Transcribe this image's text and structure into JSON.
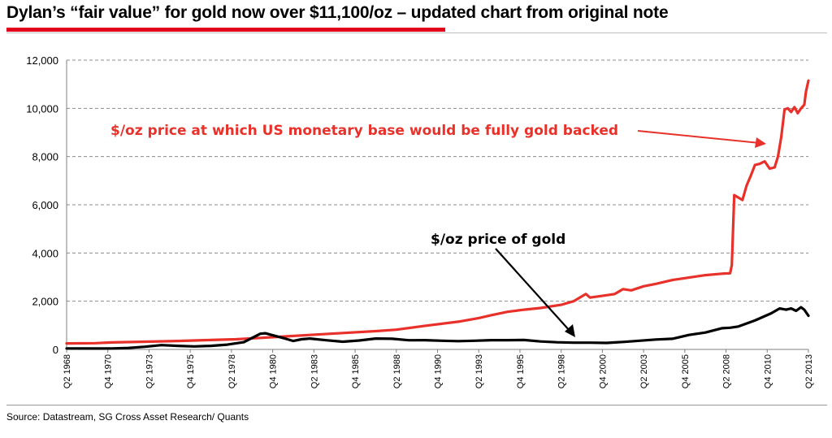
{
  "header": {
    "title": "Dylan’s “fair value” for gold now over $11,100/oz – updated chart from original note"
  },
  "footer": {
    "source": "Source: Datastream, SG Cross Asset Research/ Quants"
  },
  "colors": {
    "accent_red": "#e3001b",
    "fair_value_line": "#e8312a",
    "gold_line": "#000000",
    "grid": "#8c8c8c"
  },
  "chart_data": {
    "type": "line",
    "xlabel": "",
    "ylabel": "",
    "ylim": [
      0,
      12000
    ],
    "y_ticks": [
      "0",
      "2,000",
      "4,000",
      "6,000",
      "8,000",
      "10,000",
      "12,000"
    ],
    "grid": true,
    "x_ticks": [
      "Q2 1968",
      "Q4 1970",
      "Q2 1973",
      "Q4 1975",
      "Q2 1978",
      "Q4 1980",
      "Q2 1983",
      "Q4 1985",
      "Q2 1988",
      "Q4 1990",
      "Q2 1993",
      "Q4 1995",
      "Q2 1998",
      "Q4 2000",
      "Q2 2003",
      "Q4 2005",
      "Q2 2008",
      "Q4 2010",
      "Q2 2013"
    ],
    "annotations": [
      {
        "text": "$/oz price at which US monetary base would be fully gold backed",
        "color": "#e8312a"
      },
      {
        "text": "$/oz price of gold",
        "color": "#000000"
      }
    ],
    "series": [
      {
        "key": "fair_value",
        "color": "#e8312a",
        "points": [
          [
            1968.25,
            250
          ],
          [
            1970,
            260
          ],
          [
            1971,
            290
          ],
          [
            1973,
            320
          ],
          [
            1975,
            350
          ],
          [
            1977,
            390
          ],
          [
            1978.5,
            420
          ],
          [
            1980,
            480
          ],
          [
            1981,
            520
          ],
          [
            1983,
            600
          ],
          [
            1985,
            680
          ],
          [
            1987,
            760
          ],
          [
            1988.25,
            820
          ],
          [
            1990,
            980
          ],
          [
            1992,
            1150
          ],
          [
            1993.25,
            1300
          ],
          [
            1994,
            1420
          ],
          [
            1995,
            1560
          ],
          [
            1996,
            1650
          ],
          [
            1997,
            1720
          ],
          [
            1998.25,
            1850
          ],
          [
            1999,
            2000
          ],
          [
            1999.75,
            2300
          ],
          [
            2000,
            2150
          ],
          [
            2001,
            2250
          ],
          [
            2001.5,
            2300
          ],
          [
            2002,
            2500
          ],
          [
            2002.5,
            2450
          ],
          [
            2003.25,
            2620
          ],
          [
            2004,
            2720
          ],
          [
            2005,
            2880
          ],
          [
            2006,
            2980
          ],
          [
            2007,
            3080
          ],
          [
            2008,
            3140
          ],
          [
            2008.5,
            3160
          ],
          [
            2008.6,
            3500
          ],
          [
            2008.75,
            6400
          ],
          [
            2009,
            6300
          ],
          [
            2009.25,
            6200
          ],
          [
            2009.5,
            6800
          ],
          [
            2009.75,
            7200
          ],
          [
            2010,
            7650
          ],
          [
            2010.3,
            7700
          ],
          [
            2010.6,
            7800
          ],
          [
            2010.9,
            7500
          ],
          [
            2011.2,
            7550
          ],
          [
            2011.4,
            8000
          ],
          [
            2011.6,
            8800
          ],
          [
            2011.8,
            9950
          ],
          [
            2012,
            10000
          ],
          [
            2012.2,
            9850
          ],
          [
            2012.4,
            10050
          ],
          [
            2012.6,
            9800
          ],
          [
            2012.8,
            10000
          ],
          [
            2013,
            10150
          ],
          [
            2013.1,
            10700
          ],
          [
            2013.25,
            11150
          ]
        ]
      },
      {
        "key": "gold",
        "color": "#000000",
        "points": [
          [
            1968.25,
            40
          ],
          [
            1970,
            36
          ],
          [
            1971,
            40
          ],
          [
            1972,
            60
          ],
          [
            1973,
            110
          ],
          [
            1974,
            180
          ],
          [
            1975,
            150
          ],
          [
            1976,
            125
          ],
          [
            1977,
            150
          ],
          [
            1978,
            200
          ],
          [
            1979,
            300
          ],
          [
            1980,
            650
          ],
          [
            1980.3,
            670
          ],
          [
            1980.8,
            580
          ],
          [
            1981.5,
            450
          ],
          [
            1982,
            350
          ],
          [
            1982.5,
            420
          ],
          [
            1983,
            450
          ],
          [
            1984,
            380
          ],
          [
            1985,
            320
          ],
          [
            1986,
            370
          ],
          [
            1987,
            450
          ],
          [
            1988,
            440
          ],
          [
            1989,
            380
          ],
          [
            1990,
            385
          ],
          [
            1991,
            360
          ],
          [
            1992,
            345
          ],
          [
            1993,
            360
          ],
          [
            1994,
            385
          ],
          [
            1995,
            385
          ],
          [
            1996,
            390
          ],
          [
            1997,
            330
          ],
          [
            1998,
            295
          ],
          [
            1999,
            280
          ],
          [
            2000,
            280
          ],
          [
            2001,
            270
          ],
          [
            2002,
            310
          ],
          [
            2003,
            360
          ],
          [
            2004,
            410
          ],
          [
            2005,
            440
          ],
          [
            2006,
            600
          ],
          [
            2007,
            700
          ],
          [
            2008,
            880
          ],
          [
            2008.5,
            900
          ],
          [
            2009,
            950
          ],
          [
            2010,
            1200
          ],
          [
            2011,
            1500
          ],
          [
            2011.5,
            1700
          ],
          [
            2011.9,
            1650
          ],
          [
            2012.2,
            1700
          ],
          [
            2012.5,
            1600
          ],
          [
            2012.8,
            1750
          ],
          [
            2013,
            1650
          ],
          [
            2013.25,
            1400
          ]
        ]
      }
    ]
  }
}
